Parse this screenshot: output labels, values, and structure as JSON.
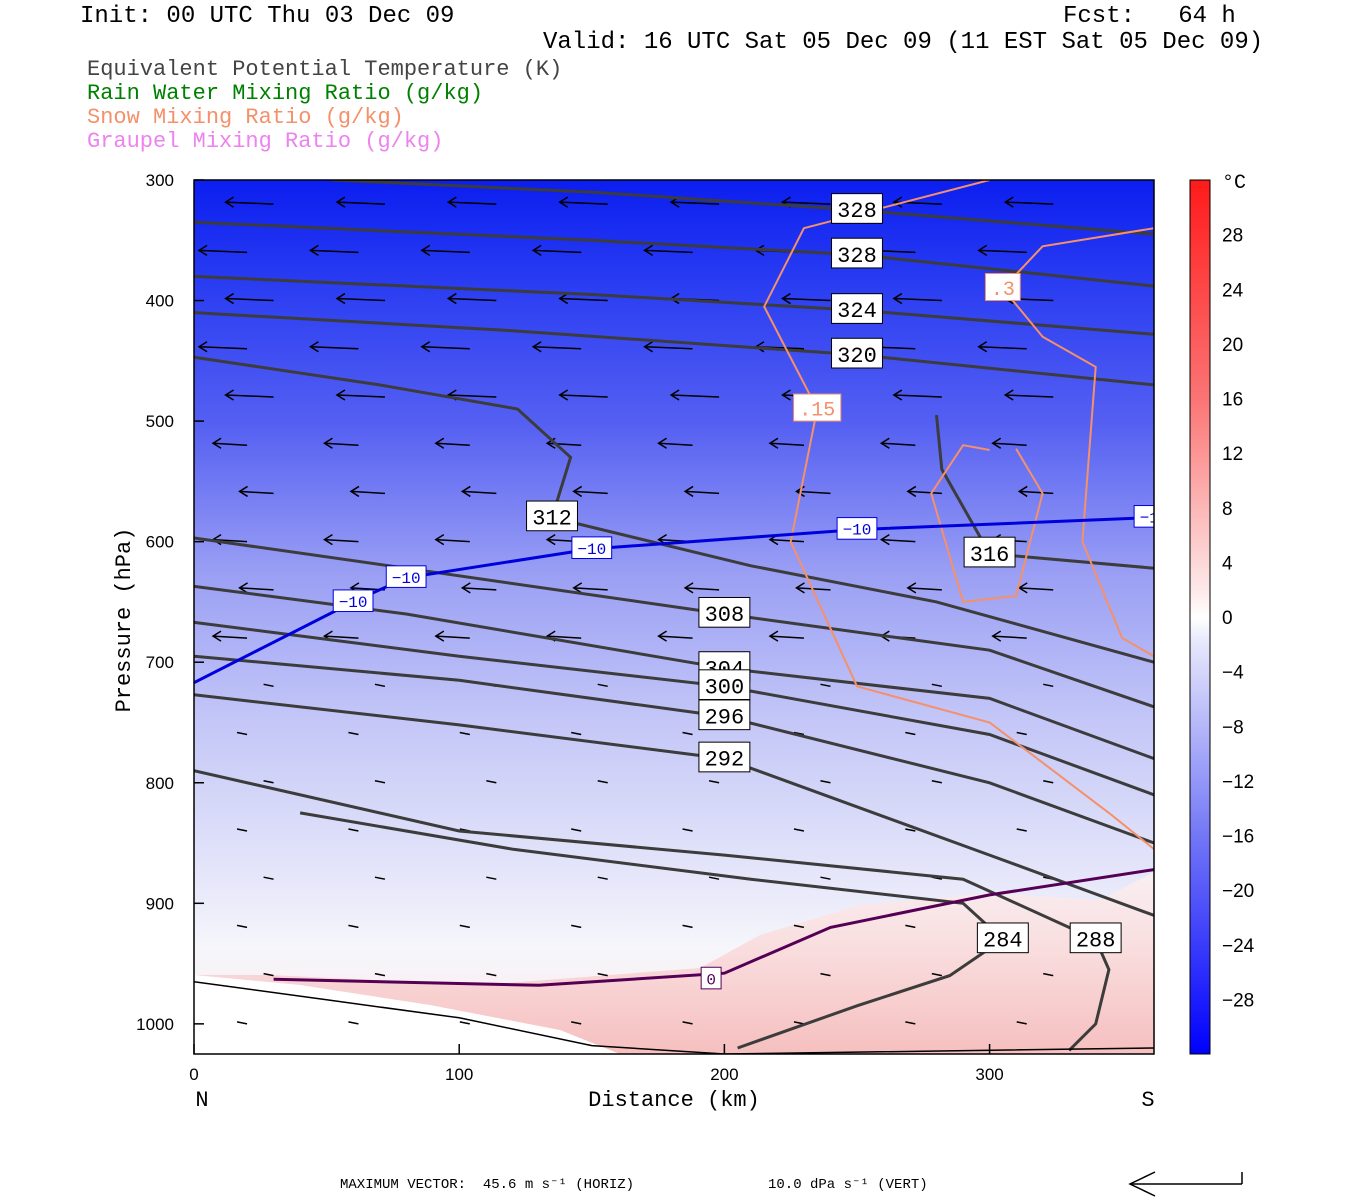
{
  "header": {
    "init": "Init: 00 UTC Thu 03 Dec 09",
    "fcst": "Fcst:   64 h",
    "valid": "Valid: 16 UTC Sat 05 Dec 09 (11 EST Sat 05 Dec 09)"
  },
  "legend": [
    {
      "label": "Equivalent Potential Temperature (K)",
      "color": "#444444"
    },
    {
      "label": "Rain Water Mixing Ratio (g/kg)",
      "color": "#008000"
    },
    {
      "label": "Snow Mixing Ratio (g/kg)",
      "color": "#f4906a"
    },
    {
      "label": "Graupel Mixing Ratio (g/kg)",
      "color": "#ee82ee"
    }
  ],
  "footer": {
    "max_vector_horiz": "MAXIMUM VECTOR:  45.6 m s⁻¹ (HORIZ)",
    "max_vector_vert": "10.0 dPa s⁻¹ (VERT)"
  },
  "chart_data": {
    "type": "cross-section",
    "xlabel": "Distance (km)",
    "ylabel": "Pressure (hPa)",
    "x_ticks": [
      0,
      100,
      200,
      300
    ],
    "y_ticks": [
      300,
      400,
      500,
      600,
      700,
      800,
      900,
      1000
    ],
    "xlim": [
      0,
      362
    ],
    "ylim": [
      1025,
      300
    ],
    "x_end_labels": {
      "left": "N",
      "right": "S"
    },
    "colorbar": {
      "unit": "°C",
      "ticks": [
        28,
        24,
        20,
        16,
        12,
        8,
        4,
        0,
        -4,
        -8,
        -12,
        -16,
        -20,
        -24,
        -28
      ],
      "range": [
        -32,
        32
      ]
    },
    "theta_e_contours": [
      {
        "label": "328",
        "points": [
          [
            52,
            300
          ],
          [
            150,
            310
          ],
          [
            250,
            325
          ],
          [
            362,
            345
          ]
        ]
      },
      {
        "label": "328",
        "points": [
          [
            0,
            335
          ],
          [
            150,
            350
          ],
          [
            250,
            362
          ],
          [
            362,
            388
          ]
        ]
      },
      {
        "label": "324",
        "points": [
          [
            0,
            380
          ],
          [
            150,
            395
          ],
          [
            250,
            408
          ],
          [
            362,
            428
          ]
        ]
      },
      {
        "label": "320",
        "points": [
          [
            0,
            410
          ],
          [
            120,
            425
          ],
          [
            250,
            445
          ],
          [
            362,
            470
          ]
        ]
      },
      {
        "label": "312",
        "points": [
          [
            0,
            447
          ],
          [
            70,
            470
          ],
          [
            122,
            490
          ],
          [
            142,
            530
          ],
          [
            135,
            580
          ],
          [
            210,
            620
          ],
          [
            280,
            650
          ],
          [
            362,
            700
          ]
        ]
      },
      {
        "label": "316",
        "points": [
          [
            280,
            495
          ],
          [
            282,
            540
          ],
          [
            300,
            610
          ],
          [
            362,
            622
          ]
        ]
      },
      {
        "label": "308",
        "points": [
          [
            0,
            597
          ],
          [
            80,
            622
          ],
          [
            200,
            660
          ],
          [
            300,
            690
          ],
          [
            362,
            737
          ]
        ]
      },
      {
        "label": "304",
        "points": [
          [
            0,
            637
          ],
          [
            80,
            660
          ],
          [
            200,
            705
          ],
          [
            300,
            730
          ],
          [
            362,
            780
          ]
        ]
      },
      {
        "label": "300",
        "points": [
          [
            0,
            667
          ],
          [
            100,
            695
          ],
          [
            200,
            720
          ],
          [
            300,
            760
          ],
          [
            362,
            810
          ]
        ]
      },
      {
        "label": "296",
        "points": [
          [
            0,
            695
          ],
          [
            100,
            715
          ],
          [
            200,
            745
          ],
          [
            300,
            800
          ],
          [
            362,
            850
          ]
        ]
      },
      {
        "label": "292",
        "points": [
          [
            0,
            727
          ],
          [
            100,
            752
          ],
          [
            200,
            780
          ],
          [
            300,
            860
          ],
          [
            362,
            910
          ]
        ]
      },
      {
        "label": "288",
        "points": [
          [
            0,
            790
          ],
          [
            100,
            840
          ],
          [
            200,
            860
          ],
          [
            290,
            880
          ],
          [
            340,
            930
          ],
          [
            345,
            955
          ],
          [
            340,
            1000
          ],
          [
            330,
            1022
          ]
        ]
      },
      {
        "label": "284",
        "points": [
          [
            40,
            825
          ],
          [
            120,
            855
          ],
          [
            210,
            880
          ],
          [
            290,
            900
          ],
          [
            305,
            930
          ],
          [
            285,
            960
          ],
          [
            250,
            985
          ],
          [
            205,
            1020
          ]
        ]
      }
    ],
    "isotherm_minus10": {
      "label": "−10",
      "color": "#0000dd",
      "points": [
        [
          0,
          717
        ],
        [
          60,
          650
        ],
        [
          80,
          630
        ],
        [
          150,
          606
        ],
        [
          250,
          590
        ],
        [
          362,
          580
        ]
      ]
    },
    "isotherm_0": {
      "label": "0",
      "color": "#550055",
      "points": [
        [
          30,
          963
        ],
        [
          130,
          968
        ],
        [
          200,
          958
        ],
        [
          240,
          920
        ],
        [
          300,
          893
        ],
        [
          362,
          872
        ]
      ]
    },
    "snow_contours": [
      {
        "label": ".15",
        "points": [
          [
            300,
            300
          ],
          [
            230,
            340
          ],
          [
            215,
            405
          ],
          [
            235,
            490
          ],
          [
            225,
            600
          ],
          [
            250,
            720
          ],
          [
            300,
            750
          ],
          [
            345,
            825
          ],
          [
            362,
            855
          ]
        ]
      },
      {
        "label": ".3",
        "points": [
          [
            362,
            340
          ],
          [
            320,
            355
          ],
          [
            305,
            390
          ],
          [
            320,
            430
          ],
          [
            340,
            455
          ],
          [
            335,
            600
          ],
          [
            350,
            680
          ],
          [
            362,
            695
          ]
        ]
      },
      {
        "label": "",
        "points": [
          [
            300,
            524
          ],
          [
            290,
            520
          ],
          [
            278,
            560
          ],
          [
            290,
            650
          ],
          [
            310,
            645
          ],
          [
            320,
            560
          ],
          [
            310,
            523
          ]
        ]
      }
    ],
    "terrain_line": [
      [
        0,
        965
      ],
      [
        50,
        980
      ],
      [
        100,
        995
      ],
      [
        150,
        1018
      ],
      [
        200,
        1025
      ],
      [
        362,
        1020
      ]
    ]
  }
}
